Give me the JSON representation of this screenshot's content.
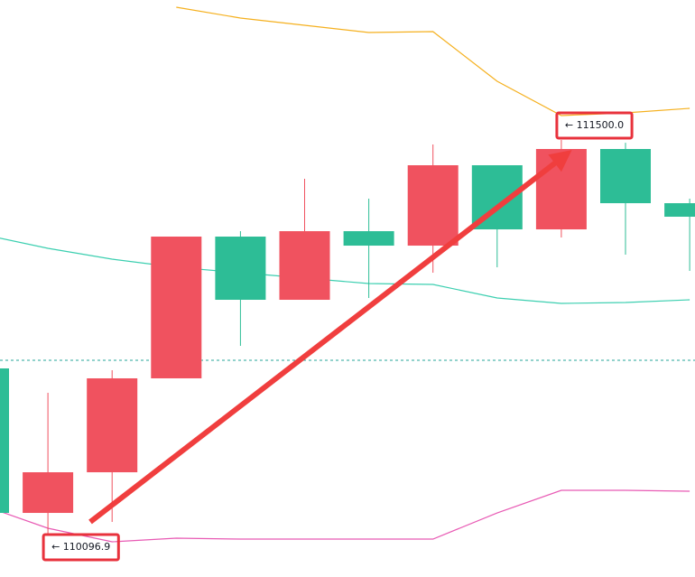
{
  "chart_data": {
    "type": "candlestick",
    "ylim": [
      109946.0,
      111997.7
    ],
    "up_color": "#f0525f",
    "down_color": "#2dbd96",
    "open": [
      110687.7,
      110173.9,
      110318.4,
      110652.4,
      111156.4,
      110931.7,
      111175.7,
      111124.3,
      111410.1,
      111182.1,
      111467.9,
      111275.2
    ],
    "high": [
      110687.7,
      110601.0,
      110681.2,
      111156.4,
      111175.7,
      111361.9,
      111291.3,
      111483.9,
      111410.1,
      111500.0,
      111490.0,
      111291.3
    ],
    "low": [
      110173.9,
      110096.9,
      110141.8,
      110652.4,
      110767.9,
      110931.7,
      110938.1,
      111028.0,
      111047.3,
      111153.2,
      111092.2,
      111034.4
    ],
    "close": [
      110173.9,
      110318.4,
      110652.4,
      111156.4,
      110931.7,
      111175.7,
      111124.3,
      111410.1,
      111182.1,
      111467.9,
      111275.2,
      111227.1
    ],
    "bands": [
      {
        "color": "#f5b01e",
        "values": [
          null,
          null,
          null,
          111972.0,
          111933.5,
          111907.8,
          111882.1,
          111885.3,
          111708.7,
          111586.7,
          111596.3,
          111612.4
        ]
      },
      {
        "color": "#3ccfb0",
        "values": [
          111162.9,
          111114.7,
          111076.2,
          111047.3,
          111028.0,
          111008.7,
          110989.5,
          110986.3,
          110938.1,
          110918.8,
          110922.1,
          110931.7
        ]
      },
      {
        "color": "#e85ab4",
        "values": [
          110199.6,
          110119.4,
          110071.2,
          110084.0,
          110080.8,
          110080.8,
          110080.8,
          110080.8,
          110173.9,
          110254.2,
          110254.2,
          110251.0
        ]
      }
    ],
    "price_line": 110716.6,
    "price_line_color": "#26a69a",
    "annotations": [
      {
        "value": 111500.0,
        "label": "← 111500.0"
      },
      {
        "value": 110096.9,
        "label": "← 110096.9"
      }
    ],
    "annotation_box_color": "#e8323c"
  }
}
